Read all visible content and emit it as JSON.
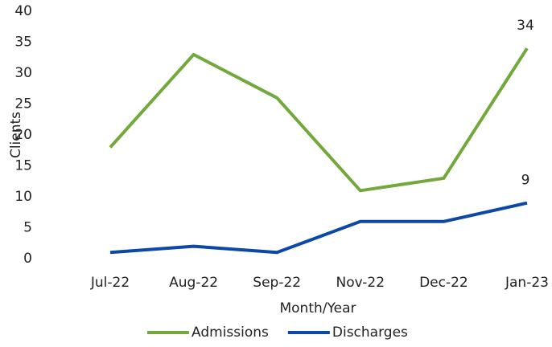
{
  "chart_data": {
    "type": "line",
    "x_label": "Month/Year",
    "y_label": "Clients",
    "categories": [
      "Jul-22",
      "Aug-22",
      "Sep-22",
      "Nov-22",
      "Dec-22",
      "Jan-23"
    ],
    "series": [
      {
        "name": "Admissions",
        "color": "#72a83c",
        "values": [
          18,
          33,
          26,
          11,
          13,
          34
        ]
      },
      {
        "name": "Discharges",
        "color": "#0b48a8",
        "values": [
          1,
          2,
          1,
          6,
          6,
          9
        ]
      }
    ],
    "ylim": [
      0,
      40
    ],
    "yticks": [
      0,
      5,
      10,
      15,
      20,
      25,
      30,
      35,
      40
    ],
    "grid": false,
    "data_labels": "last",
    "legend": "bottom"
  }
}
